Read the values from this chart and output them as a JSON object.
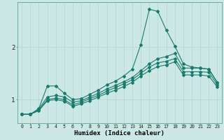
{
  "title": "",
  "xlabel": "Humidex (Indice chaleur)",
  "ylabel": "",
  "bg_color": "#cce8e4",
  "line_color": "#1a7a6e",
  "grid_color": "#b8d8d4",
  "xlim": [
    -0.5,
    23.5
  ],
  "ylim": [
    0.55,
    2.85
  ],
  "yticks": [
    1,
    2
  ],
  "xtick_labels": [
    "0",
    "1",
    "2",
    "3",
    "4",
    "5",
    "6",
    "7",
    "8",
    "9",
    "10",
    "11",
    "12",
    "13",
    "14",
    "15",
    "16",
    "17",
    "18",
    "19",
    "20",
    "21",
    "22",
    "23"
  ],
  "xtick_vals": [
    0,
    1,
    2,
    3,
    4,
    5,
    6,
    7,
    8,
    9,
    10,
    11,
    12,
    13,
    14,
    15,
    16,
    17,
    18,
    19,
    20,
    21,
    22,
    23
  ],
  "series": {
    "spike": {
      "x": [
        0,
        1,
        2,
        3,
        4,
        5,
        6,
        7,
        8,
        9,
        10,
        11,
        12,
        13,
        14,
        15,
        16,
        17,
        18,
        19,
        20,
        21,
        22,
        23
      ],
      "y": [
        0.72,
        0.72,
        0.83,
        1.26,
        1.26,
        1.12,
        1.0,
        1.02,
        1.1,
        1.18,
        1.28,
        1.35,
        1.45,
        1.58,
        2.05,
        2.72,
        2.68,
        2.32,
        2.02,
        1.68,
        1.62,
        1.6,
        1.58,
        1.33
      ]
    },
    "upper": {
      "x": [
        0,
        1,
        2,
        3,
        4,
        5,
        6,
        7,
        8,
        9,
        10,
        11,
        12,
        13,
        14,
        15,
        16,
        17,
        18,
        19,
        20,
        21,
        22,
        23
      ],
      "y": [
        0.72,
        0.72,
        0.82,
        1.05,
        1.08,
        1.05,
        0.95,
        0.98,
        1.05,
        1.12,
        1.2,
        1.27,
        1.34,
        1.42,
        1.55,
        1.68,
        1.78,
        1.82,
        1.88,
        1.6,
        1.6,
        1.6,
        1.58,
        1.32
      ]
    },
    "mid": {
      "x": [
        0,
        1,
        2,
        3,
        4,
        5,
        6,
        7,
        8,
        9,
        10,
        11,
        12,
        13,
        14,
        15,
        16,
        17,
        18,
        19,
        20,
        21,
        22,
        23
      ],
      "y": [
        0.72,
        0.72,
        0.8,
        1.0,
        1.03,
        1.0,
        0.9,
        0.95,
        1.02,
        1.08,
        1.16,
        1.23,
        1.3,
        1.38,
        1.5,
        1.62,
        1.7,
        1.73,
        1.78,
        1.53,
        1.53,
        1.53,
        1.52,
        1.28
      ]
    },
    "lower": {
      "x": [
        0,
        1,
        2,
        3,
        4,
        5,
        6,
        7,
        8,
        9,
        10,
        11,
        12,
        13,
        14,
        15,
        16,
        17,
        18,
        19,
        20,
        21,
        22,
        23
      ],
      "y": [
        0.72,
        0.72,
        0.79,
        0.98,
        1.0,
        0.97,
        0.87,
        0.92,
        0.98,
        1.05,
        1.12,
        1.18,
        1.25,
        1.33,
        1.45,
        1.55,
        1.63,
        1.66,
        1.72,
        1.47,
        1.47,
        1.47,
        1.45,
        1.24
      ]
    }
  }
}
